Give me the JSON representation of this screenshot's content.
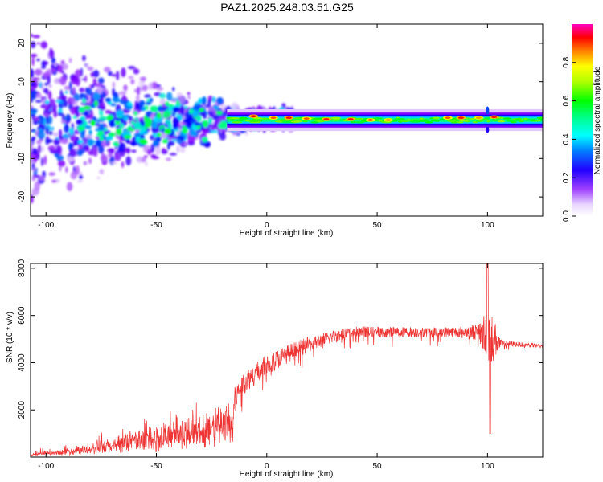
{
  "title": "PAZ1.2025.248.03.51.G25",
  "chart_data": [
    {
      "type": "heatmap",
      "xlabel": "Height of straight line (km)",
      "ylabel": "Frequency (Hz)",
      "xlim": [
        -107,
        125
      ],
      "ylim": [
        -25,
        25
      ],
      "xticks": [
        -100,
        -50,
        0,
        50,
        100
      ],
      "yticks": [
        -20,
        -10,
        0,
        10,
        20
      ],
      "colorbar": {
        "label": "Normalized spectral amplitude",
        "range": [
          0.0,
          1.0
        ],
        "ticks": [
          "0.0",
          "0.2",
          "0.4",
          "0.6",
          "0.8"
        ],
        "tick_values": [
          0.0,
          0.2,
          0.4,
          0.6,
          0.8
        ],
        "colors": [
          "#ffffff",
          "#d8b8ff",
          "#8000ff",
          "#0000ff",
          "#00e0ff",
          "#00ff80",
          "#00ff00",
          "#c0ff00",
          "#ffff00",
          "#ff8000",
          "#ff0000",
          "#ff00a0"
        ]
      },
      "band": {
        "frequency_center": 0,
        "half_width_hz": 1.5,
        "starts_at_height": -18,
        "peaks": [
          {
            "x": -6,
            "f": 1.0,
            "v": 0.9
          },
          {
            "x": 3,
            "f": 0.6,
            "v": 0.85
          },
          {
            "x": 10,
            "f": 0.6,
            "v": 0.9
          },
          {
            "x": 18,
            "f": 0.4,
            "v": 0.85
          },
          {
            "x": 27,
            "f": 0.2,
            "v": 0.9
          },
          {
            "x": 38,
            "f": 0.2,
            "v": 0.9
          },
          {
            "x": 47,
            "f": 0.0,
            "v": 0.85
          },
          {
            "x": 55,
            "f": 0.0,
            "v": 0.8
          },
          {
            "x": 82,
            "f": 0.6,
            "v": 0.85
          },
          {
            "x": 88,
            "f": 0.6,
            "v": 0.9
          },
          {
            "x": 96,
            "f": 0.6,
            "v": 0.8
          },
          {
            "x": 103,
            "f": 0.8,
            "v": 0.9
          }
        ]
      }
    },
    {
      "type": "line",
      "xlabel": "Height of straight line (km)",
      "ylabel": "SNR (10 * v/v)",
      "xlim": [
        -107,
        125
      ],
      "ylim": [
        0,
        8200
      ],
      "xticks": [
        -100,
        -50,
        0,
        50,
        100
      ],
      "yticks": [
        2000,
        4000,
        6000,
        8000
      ],
      "color": "#ee3333",
      "envelope": {
        "x": [
          -107,
          -90,
          -75,
          -60,
          -45,
          -30,
          -20,
          -16,
          -15,
          -10,
          0,
          10,
          20,
          30,
          40,
          50,
          60,
          70,
          80,
          90,
          96,
          99,
          100,
          101,
          103,
          106,
          110,
          125
        ],
        "baseline": [
          100,
          250,
          500,
          900,
          1200,
          1500,
          1800,
          1900,
          2400,
          3200,
          3900,
          4400,
          4800,
          5100,
          5300,
          5300,
          5300,
          5300,
          5300,
          5300,
          5300,
          5200,
          5000,
          5200,
          5000,
          4800,
          4800,
          4700
        ],
        "spread": [
          150,
          250,
          400,
          600,
          700,
          800,
          900,
          1000,
          900,
          900,
          800,
          700,
          600,
          500,
          450,
          400,
          400,
          400,
          400,
          450,
          700,
          1800,
          3000,
          2500,
          1600,
          300,
          200,
          150
        ]
      }
    }
  ]
}
